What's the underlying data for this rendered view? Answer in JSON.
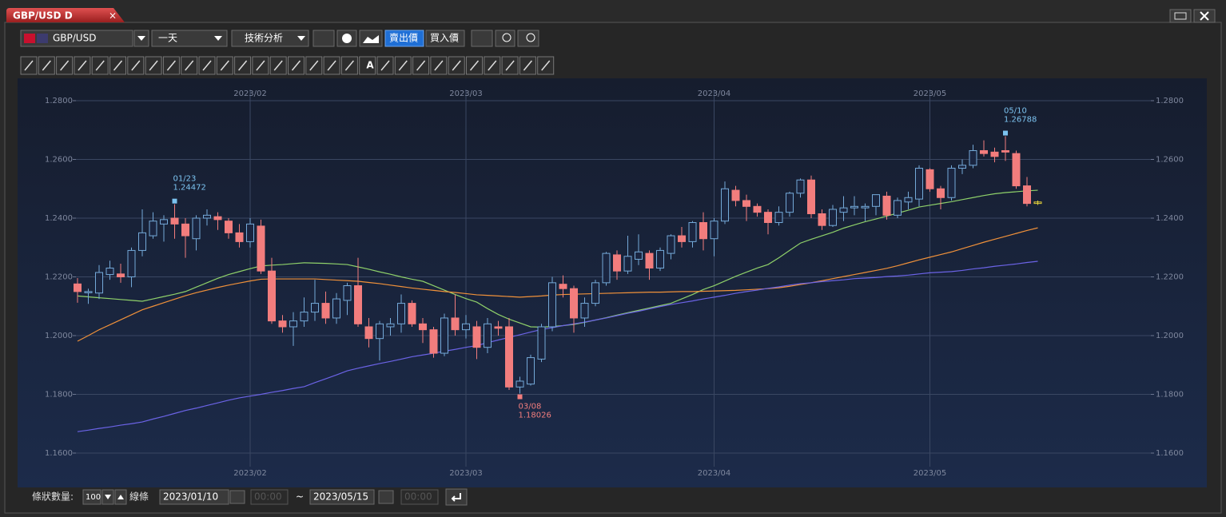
{
  "window": {
    "tab": "GBP/USD D",
    "symbol": "GBP/USD",
    "period": "一天",
    "analysis": "技術分析",
    "sell": "賣出價",
    "buy": "買入價",
    "text_tool": "A"
  },
  "footer": {
    "count_label": "條狀數量:",
    "count": 100,
    "line_label": "線條",
    "start_date": "2023/01/10",
    "start_time": "00:00",
    "separator": "~",
    "end_date": "2023/05/15",
    "end_time": "00:00"
  },
  "chart_data": {
    "type": "candlestick",
    "categories": [
      null,
      null,
      null,
      null,
      null,
      null,
      null,
      null,
      null,
      null,
      null,
      null,
      null,
      null,
      null,
      null,
      "2023/02",
      null,
      null,
      null,
      null,
      null,
      null,
      null,
      null,
      null,
      null,
      null,
      null,
      null,
      null,
      null,
      null,
      null,
      null,
      null,
      "2023/03",
      null,
      null,
      null,
      null,
      null,
      null,
      null,
      null,
      null,
      null,
      null,
      null,
      null,
      null,
      null,
      null,
      null,
      null,
      null,
      null,
      null,
      null,
      "2023/04",
      null,
      null,
      null,
      null,
      null,
      null,
      null,
      null,
      null,
      null,
      null,
      null,
      null,
      null,
      null,
      null,
      null,
      null,
      null,
      "2023/05",
      null,
      null,
      null,
      null,
      null,
      null,
      null,
      null,
      null,
      null
    ],
    "open": [
      1.2176,
      1.2146,
      1.2145,
      1.2208,
      1.221,
      1.22,
      1.229,
      1.234,
      1.238,
      1.24,
      1.238,
      1.233,
      1.24,
      1.2405,
      1.239,
      1.235,
      1.232,
      1.2373,
      1.222,
      1.205,
      1.203,
      1.205,
      1.208,
      1.211,
      1.206,
      1.212,
      1.217,
      1.203,
      1.199,
      1.203,
      1.204,
      1.211,
      1.204,
      1.202,
      1.194,
      1.206,
      1.202,
      1.203,
      1.196,
      1.203,
      1.203,
      1.1825,
      1.1835,
      1.192,
      1.203,
      1.2175,
      1.216,
      1.206,
      1.211,
      1.218,
      1.2275,
      1.222,
      1.226,
      1.228,
      1.223,
      1.228,
      1.234,
      1.232,
      1.2385,
      1.233,
      1.239,
      1.2495,
      1.246,
      1.244,
      1.242,
      1.2385,
      1.242,
      1.2485,
      1.253,
      1.2415,
      1.2375,
      1.242,
      1.2435,
      1.2435,
      1.244,
      1.2475,
      1.241,
      1.2455,
      1.2465,
      1.2565,
      1.25,
      1.247,
      1.257,
      1.258,
      1.263,
      1.2625,
      1.263,
      1.262,
      1.251,
      1.245
    ],
    "high": [
      1.2196,
      1.216,
      1.224,
      1.2255,
      1.2245,
      1.23,
      1.243,
      1.242,
      1.241,
      1.24472,
      1.24,
      1.241,
      1.243,
      1.242,
      1.24,
      1.238,
      1.24,
      1.2395,
      1.2265,
      1.207,
      1.208,
      1.213,
      1.219,
      1.215,
      1.2145,
      1.218,
      1.2265,
      1.206,
      1.205,
      1.206,
      1.214,
      1.212,
      1.206,
      1.203,
      1.2075,
      1.214,
      1.207,
      1.205,
      1.206,
      1.205,
      1.206,
      1.186,
      1.1935,
      1.204,
      1.22,
      1.2205,
      1.217,
      1.213,
      1.219,
      1.2285,
      1.229,
      1.234,
      1.2345,
      1.229,
      1.23,
      1.2345,
      1.237,
      1.239,
      1.242,
      1.24,
      1.2525,
      1.251,
      1.248,
      1.245,
      1.243,
      1.244,
      1.249,
      1.2535,
      1.2545,
      1.243,
      1.2445,
      1.2475,
      1.2475,
      1.245,
      1.248,
      1.249,
      1.247,
      1.249,
      1.258,
      1.257,
      1.251,
      1.258,
      1.26,
      1.265,
      1.2665,
      1.264,
      1.26788,
      1.263,
      1.254,
      1.246
    ],
    "low": [
      1.2112,
      1.2108,
      1.2125,
      1.219,
      1.218,
      1.2165,
      1.227,
      1.233,
      1.232,
      1.233,
      1.2265,
      1.229,
      1.2375,
      1.236,
      1.233,
      1.23,
      1.23,
      1.221,
      1.204,
      1.201,
      1.1965,
      1.203,
      1.205,
      1.204,
      1.204,
      1.207,
      1.203,
      1.196,
      1.1915,
      1.2,
      1.201,
      1.203,
      1.1975,
      1.1925,
      1.193,
      1.2,
      1.199,
      1.192,
      1.194,
      1.2,
      1.1815,
      1.18026,
      1.183,
      1.191,
      1.2015,
      1.213,
      1.201,
      1.203,
      1.21,
      1.217,
      1.219,
      1.221,
      1.224,
      1.219,
      1.222,
      1.226,
      1.23,
      1.23,
      1.229,
      1.227,
      1.238,
      1.244,
      1.239,
      1.2405,
      1.2345,
      1.2375,
      1.2405,
      1.247,
      1.24,
      1.236,
      1.237,
      1.239,
      1.241,
      1.239,
      1.241,
      1.2395,
      1.24,
      1.243,
      1.244,
      1.249,
      1.243,
      1.246,
      1.255,
      1.257,
      1.261,
      1.259,
      1.2595,
      1.25,
      1.244,
      1.2445
    ],
    "close": [
      1.215,
      1.215,
      1.2215,
      1.223,
      1.22,
      1.229,
      1.235,
      1.239,
      1.2395,
      1.238,
      1.234,
      1.24,
      1.241,
      1.2395,
      1.235,
      1.232,
      1.238,
      1.222,
      1.205,
      1.203,
      1.205,
      1.208,
      1.211,
      1.206,
      1.2125,
      1.217,
      1.204,
      1.199,
      1.204,
      1.204,
      1.211,
      1.204,
      1.202,
      1.194,
      1.206,
      1.202,
      1.204,
      1.196,
      1.204,
      1.2025,
      1.1825,
      1.1845,
      1.1925,
      1.203,
      1.218,
      1.216,
      1.206,
      1.211,
      1.218,
      1.228,
      1.222,
      1.227,
      1.2285,
      1.223,
      1.229,
      1.234,
      1.232,
      1.2385,
      1.233,
      1.239,
      1.25,
      1.246,
      1.244,
      1.242,
      1.2385,
      1.242,
      1.2485,
      1.253,
      1.2415,
      1.2375,
      1.243,
      1.2435,
      1.244,
      1.244,
      1.248,
      1.241,
      1.246,
      1.247,
      1.257,
      1.25,
      1.247,
      1.257,
      1.258,
      1.263,
      1.262,
      1.261,
      1.2625,
      1.251,
      1.245,
      1.2455
    ],
    "up_color": "#74a9d8",
    "down_color": "#f27d7d",
    "last_color": "#e3cf3a",
    "series": [
      {
        "color": "#8fd16a",
        "values": [
          1.2135,
          1.2132,
          1.2129,
          1.2126,
          1.2123,
          1.212,
          1.2117,
          1.2125,
          1.2133,
          1.2141,
          1.215,
          1.2165,
          1.218,
          1.2195,
          1.2208,
          1.2218,
          1.2228,
          1.2237,
          1.224,
          1.2242,
          1.2245,
          1.2248,
          1.2247,
          1.2246,
          1.2244,
          1.2242,
          1.2234,
          1.2226,
          1.2217,
          1.2209,
          1.22,
          1.2192,
          1.2185,
          1.217,
          1.2155,
          1.214,
          1.2126,
          1.2114,
          1.2092,
          1.2072,
          1.2056,
          1.2043,
          1.203,
          1.2029,
          1.2031,
          1.2034,
          1.2038,
          1.2045,
          1.2053,
          1.2061,
          1.207,
          1.2078,
          1.2086,
          1.2094,
          1.2102,
          1.211,
          1.2125,
          1.214,
          1.2157,
          1.217,
          1.2186,
          1.2202,
          1.2216,
          1.223,
          1.2242,
          1.2265,
          1.229,
          1.2315,
          1.2328,
          1.234,
          1.2352,
          1.2366,
          1.2377,
          1.2388,
          1.2397,
          1.2407,
          1.2417,
          1.2427,
          1.2438,
          1.2444,
          1.245,
          1.2456,
          1.2463,
          1.247,
          1.2477,
          1.2483,
          1.2487,
          1.249,
          1.2493,
          1.2495
        ]
      },
      {
        "color": "#f0913a",
        "values": [
          1.1981,
          1.2,
          1.202,
          1.2037,
          1.2054,
          1.2071,
          1.2088,
          1.21,
          1.2112,
          1.2124,
          1.2136,
          1.2146,
          1.2155,
          1.2164,
          1.2172,
          1.2179,
          1.2186,
          1.2192,
          1.2193,
          1.2193,
          1.2193,
          1.2193,
          1.2193,
          1.2191,
          1.2189,
          1.2187,
          1.2185,
          1.2181,
          1.2177,
          1.2172,
          1.2167,
          1.2162,
          1.2158,
          1.2154,
          1.215,
          1.2147,
          1.2143,
          1.2139,
          1.2137,
          1.2135,
          1.2133,
          1.2131,
          1.2133,
          1.2135,
          1.2138,
          1.214,
          1.2141,
          1.2142,
          1.2143,
          1.2144,
          1.2145,
          1.2146,
          1.2147,
          1.2148,
          1.2148,
          1.2149,
          1.215,
          1.215,
          1.2151,
          1.2152,
          1.2153,
          1.2154,
          1.2156,
          1.2158,
          1.216,
          1.2163,
          1.2168,
          1.2174,
          1.218,
          1.2187,
          1.2194,
          1.2201,
          1.2208,
          1.2215,
          1.2222,
          1.2229,
          1.2238,
          1.2248,
          1.2258,
          1.2267,
          1.2276,
          1.2285,
          1.2296,
          1.2307,
          1.2318,
          1.2328,
          1.2338,
          1.2348,
          1.2358,
          1.2367
        ]
      },
      {
        "color": "#6b63e6",
        "values": [
          1.1673,
          1.1678,
          1.1684,
          1.1689,
          1.1695,
          1.17,
          1.1706,
          1.1716,
          1.1725,
          1.1735,
          1.1745,
          1.1753,
          1.1762,
          1.1771,
          1.178,
          1.1788,
          1.1794,
          1.18,
          1.1807,
          1.1813,
          1.182,
          1.1826,
          1.184,
          1.1853,
          1.1866,
          1.188,
          1.1889,
          1.1897,
          1.1905,
          1.1912,
          1.192,
          1.1928,
          1.1934,
          1.194,
          1.1947,
          1.1953,
          1.196,
          1.1966,
          1.1976,
          1.1985,
          1.1994,
          1.2003,
          1.2012,
          1.2021,
          1.2027,
          1.2034,
          1.204,
          1.2046,
          1.2053,
          1.206,
          1.2068,
          1.2076,
          1.2083,
          1.2091,
          1.2099,
          1.2106,
          1.2112,
          1.2118,
          1.2125,
          1.2131,
          1.2137,
          1.2144,
          1.215,
          1.2155,
          1.2161,
          1.2166,
          1.2172,
          1.2177,
          1.218,
          1.2184,
          1.2187,
          1.219,
          1.2194,
          1.2196,
          1.2198,
          1.2201,
          1.2203,
          1.2206,
          1.221,
          1.2214,
          1.2216,
          1.2218,
          1.2222,
          1.2227,
          1.2231,
          1.2236,
          1.224,
          1.2244,
          1.2249,
          1.2253
        ]
      }
    ],
    "annotations": [
      {
        "label": "01/23",
        "value": 1.24472
      },
      {
        "label": "03/08",
        "value": 1.18026
      },
      {
        "label": "05/10",
        "value": 1.26788
      }
    ],
    "ylim": [
      1.16,
      1.28
    ],
    "yticks": [
      {
        "value": 1.16,
        "label": "1.1600"
      },
      {
        "value": 1.18,
        "label": "1.1800"
      },
      {
        "value": 1.2,
        "label": "1.2000"
      },
      {
        "value": 1.22,
        "label": "1.2200"
      },
      {
        "value": 1.24,
        "label": "1.2400"
      },
      {
        "value": 1.26,
        "label": "1.2600"
      },
      {
        "value": 1.28,
        "label": "1.2800"
      }
    ],
    "grid": true
  }
}
